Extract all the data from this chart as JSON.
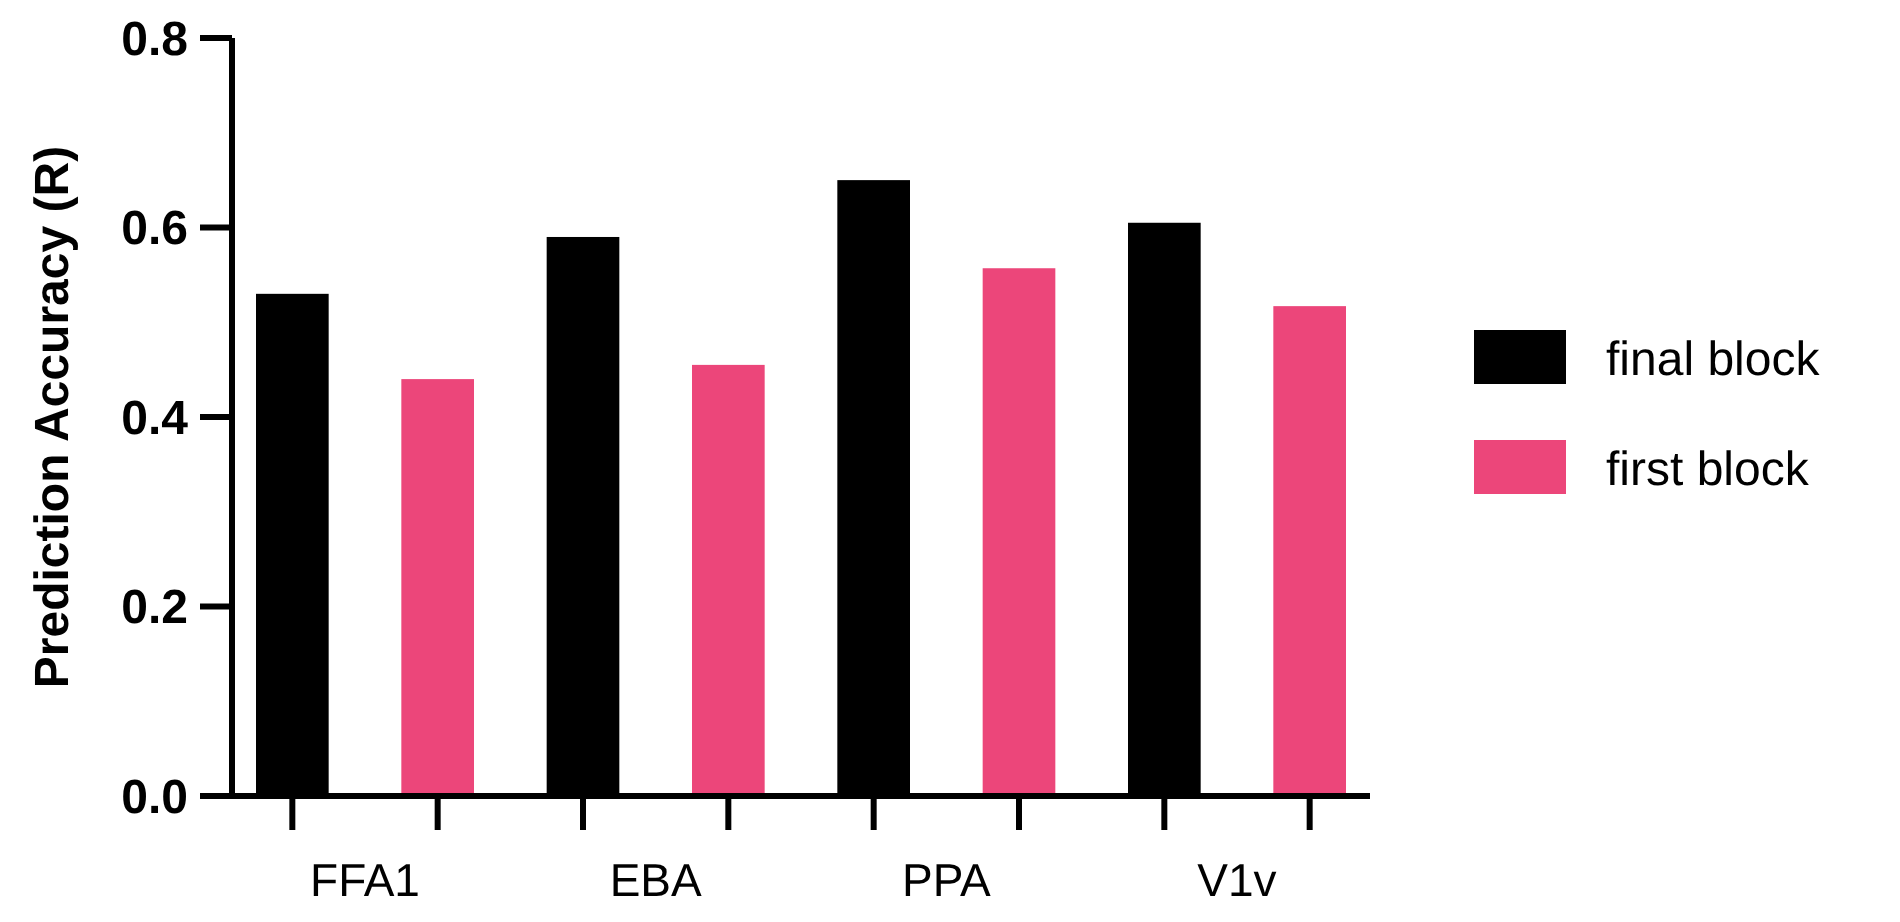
{
  "chart_data": {
    "type": "bar",
    "ylabel": "Prediction Accuracy (R)",
    "categories": [
      "FFA1",
      "EBA",
      "PPA",
      "V1v"
    ],
    "series": [
      {
        "name": "final block",
        "color": "#000000",
        "values": [
          0.53,
          0.59,
          0.65,
          0.605
        ]
      },
      {
        "name": "first block",
        "color": "#ec467a",
        "values": [
          0.44,
          0.455,
          0.557,
          0.517
        ]
      }
    ],
    "ylim": [
      0,
      0.8
    ],
    "yticks": [
      {
        "value": 0,
        "label": "0.0"
      },
      0.2,
      0.4,
      0.6,
      0.8
    ],
    "grid": false,
    "legend": "right"
  }
}
